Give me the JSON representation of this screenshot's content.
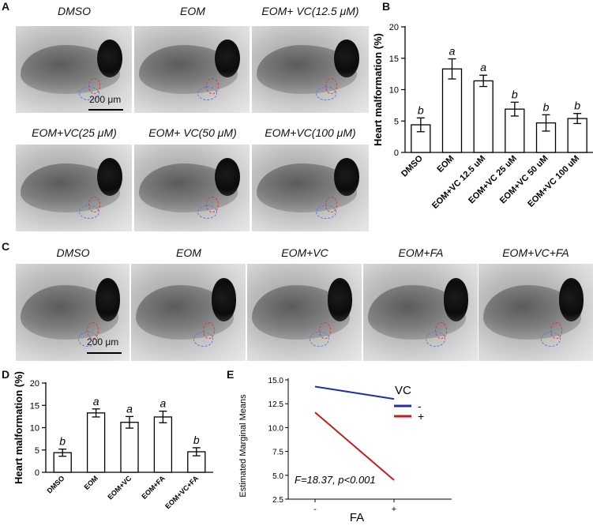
{
  "panels": {
    "A": {
      "letter": "A",
      "captions": [
        "DMSO",
        "EOM",
        "EOM+ VC(12.5 μM)",
        "EOM+VC(25 μM)",
        "EOM+ VC(50 μM)",
        "EOM+VC(100 μM)"
      ],
      "scale": "200 μm"
    },
    "B": {
      "letter": "B"
    },
    "C": {
      "letter": "C",
      "captions": [
        "DMSO",
        "EOM",
        "EOM+VC",
        "EOM+FA",
        "EOM+VC+FA"
      ],
      "scale": "200 μm"
    },
    "D": {
      "letter": "D"
    },
    "E": {
      "letter": "E"
    }
  },
  "chart_data": [
    {
      "panel": "B",
      "type": "bar",
      "categories": [
        "DMSO",
        "EOM",
        "EOM+VC 12.5 uM",
        "EOM+VC 25 uM",
        "EOM+VC 50 uM",
        "EOM+VC 100 uM"
      ],
      "values": [
        4.4,
        13.3,
        11.4,
        6.9,
        4.7,
        5.4
      ],
      "errors": [
        1.1,
        1.6,
        0.9,
        1.1,
        1.3,
        0.8
      ],
      "letters": [
        "b",
        "a",
        "a",
        "b",
        "b",
        "b"
      ],
      "ylabel": "Heart malformation (%)",
      "ylim": [
        0,
        20
      ],
      "yticks": [
        "0",
        "5",
        "10",
        "15",
        "20"
      ]
    },
    {
      "panel": "D",
      "type": "bar",
      "categories": [
        "DMSO",
        "EOM",
        "EOM+VC",
        "EOM+FA",
        "EOM+VC+FA"
      ],
      "values": [
        4.4,
        13.3,
        11.2,
        12.4,
        4.6
      ],
      "errors": [
        0.8,
        0.9,
        1.3,
        1.3,
        0.9
      ],
      "letters": [
        "b",
        "a",
        "a",
        "a",
        "b"
      ],
      "ylabel": "Heart malformation (%)",
      "ylim": [
        0,
        20
      ],
      "yticks": [
        "0",
        "5",
        "10",
        "15",
        "20"
      ]
    },
    {
      "panel": "E",
      "type": "line",
      "x": [
        "-",
        "+"
      ],
      "series": [
        {
          "name": "-",
          "values": [
            14.3,
            13.0
          ],
          "color": "#1f2fa8"
        },
        {
          "name": "+",
          "values": [
            11.6,
            4.5
          ],
          "color": "#c21e1e"
        }
      ],
      "ylabel": "Estimated Marginal Means",
      "xlabel": "FA",
      "legend_title": "VC",
      "ylim": [
        2.5,
        15.0
      ],
      "yticks": [
        "2.5",
        "5.0",
        "7.5",
        "10.0",
        "12.5",
        "15.0"
      ],
      "annotation": "F=18.37, p<0.001"
    }
  ]
}
